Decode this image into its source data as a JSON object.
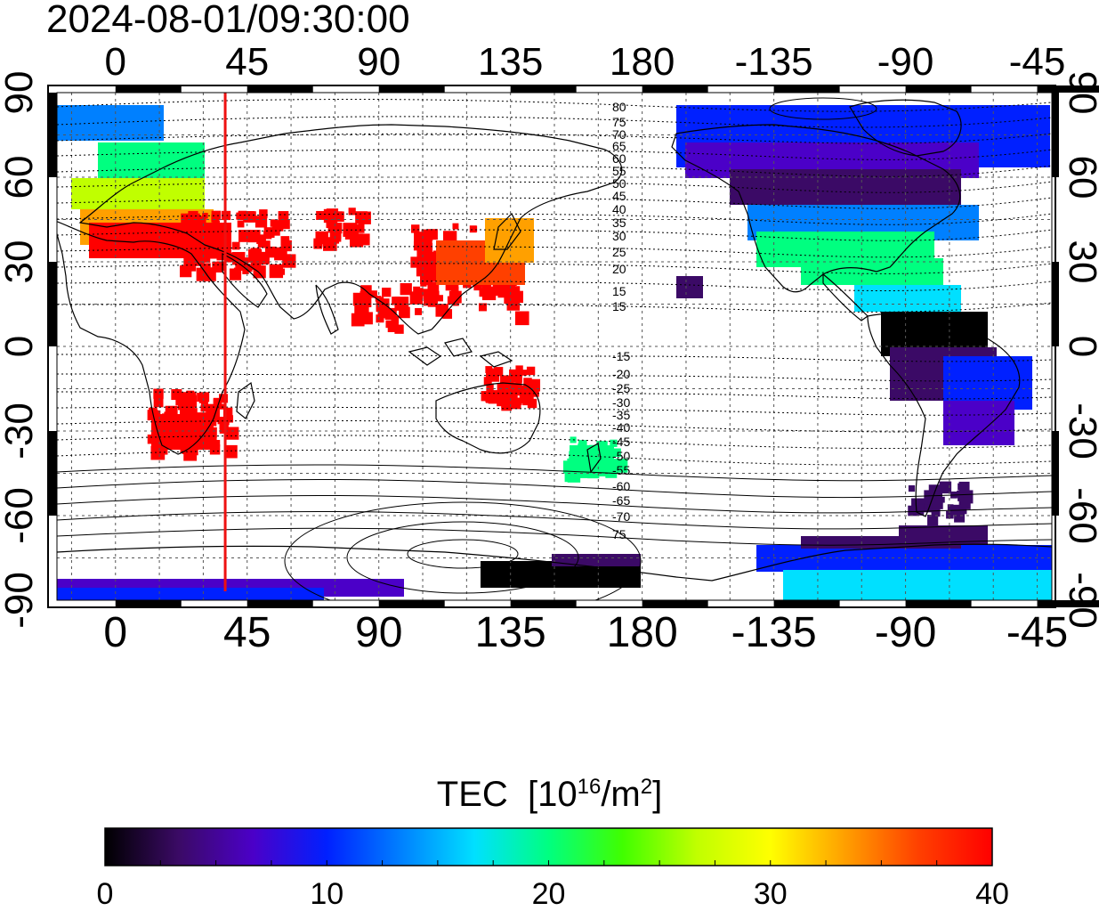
{
  "timestamp": "2024-08-01/09:30:00",
  "map": {
    "lon_ticks_top": [
      "0",
      "45",
      "90",
      "135",
      "180",
      "-135",
      "-90",
      "-45"
    ],
    "lon_ticks_bottom": [
      "0",
      "45",
      "90",
      "135",
      "180",
      "-135",
      "-90",
      "-45"
    ],
    "lat_ticks_left": [
      "90",
      "60",
      "30",
      "0",
      "-30",
      "-60",
      "-90"
    ],
    "lat_ticks_right": [
      "90",
      "60",
      "30",
      "0",
      "-30",
      "-60",
      "-90"
    ],
    "lon_range": [
      -20,
      320
    ],
    "lat_range": [
      -90,
      90
    ],
    "lon_grid_step": 15,
    "lat_grid_step": 15,
    "marker_longitude": 37.5,
    "marker_color": "#ee1111",
    "contour_labels_north": [
      "80",
      "75",
      "70",
      "65",
      "60",
      "55",
      "50",
      "45",
      "40",
      "35",
      "30",
      "25",
      "20",
      "15"
    ],
    "contour_labels_south": [
      "-15",
      "-20",
      "-25",
      "-30",
      "-35",
      "-40",
      "-45",
      "-50",
      "-55",
      "-60",
      "-65",
      "-70",
      "75"
    ]
  },
  "colorbar": {
    "label": "TEC",
    "units_text": "[10",
    "units_exp": "16",
    "units_mid": "/m",
    "units_exp2": "2",
    "units_close": "]",
    "ticks": [
      "0",
      "10",
      "20",
      "30",
      "40"
    ],
    "min": 0,
    "max": 40,
    "colors": [
      "#000000",
      "#3b0a66",
      "#4b00c8",
      "#0020ff",
      "#0080ff",
      "#00e0ff",
      "#00ff80",
      "#40ff00",
      "#c0ff00",
      "#ffff00",
      "#ffa000",
      "#ff4000",
      "#ff0000"
    ]
  }
}
